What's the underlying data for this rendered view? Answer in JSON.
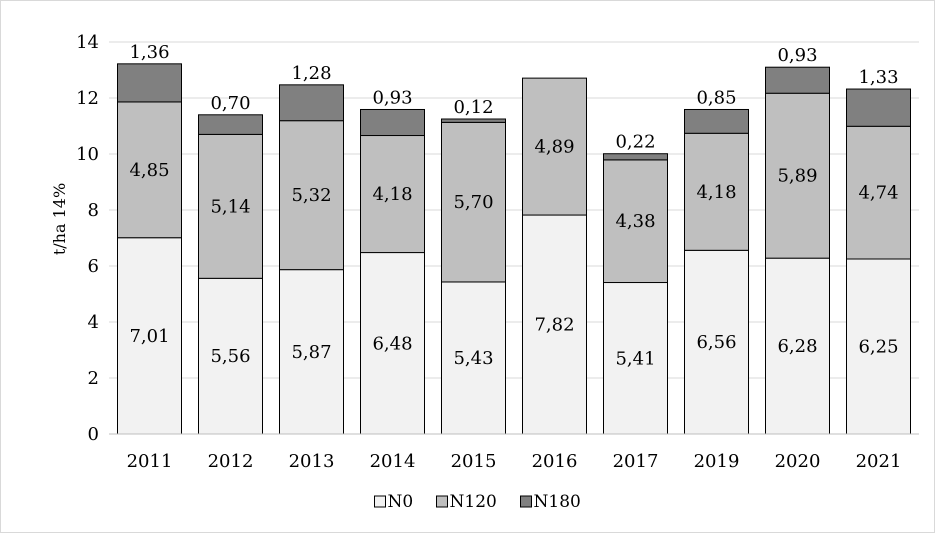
{
  "chart_data": {
    "type": "bar",
    "stacked": true,
    "title": "",
    "xlabel": "",
    "ylabel": "t/ha 14%",
    "ylim": [
      0,
      14
    ],
    "yticks": [
      "0",
      "2",
      "4",
      "6",
      "8",
      "10",
      "12",
      "14"
    ],
    "grid": true,
    "legend_position": "bottom",
    "categories": [
      "2011",
      "2012",
      "2013",
      "2014",
      "2015",
      "2016",
      "2017",
      "2019",
      "2020",
      "2021"
    ],
    "series": [
      {
        "name": "N0",
        "color": "#f2f2f2",
        "values": [
          7.01,
          5.56,
          5.87,
          6.48,
          5.43,
          7.82,
          5.41,
          6.56,
          6.28,
          6.25
        ],
        "labels": [
          "7,01",
          "5,56",
          "5,87",
          "6,48",
          "5,43",
          "7,82",
          "5,41",
          "6,56",
          "6,28",
          "6,25"
        ]
      },
      {
        "name": "N120",
        "color": "#bfbfbf",
        "values": [
          4.85,
          5.14,
          5.32,
          4.18,
          5.7,
          4.89,
          4.38,
          4.18,
          5.89,
          4.74
        ],
        "labels": [
          "4,85",
          "5,14",
          "5,32",
          "4,18",
          "5,70",
          "4,89",
          "4,38",
          "4,18",
          "5,89",
          "4,74"
        ]
      },
      {
        "name": "N180",
        "color": "#808080",
        "values": [
          1.36,
          0.7,
          1.28,
          0.93,
          0.12,
          0,
          0.22,
          0.85,
          0.93,
          1.33
        ],
        "labels": [
          "1,36",
          "0,70",
          "1,28",
          "0,93",
          "0,12",
          "",
          "0,22",
          "0,85",
          "0,93",
          "1,33"
        ]
      }
    ]
  }
}
